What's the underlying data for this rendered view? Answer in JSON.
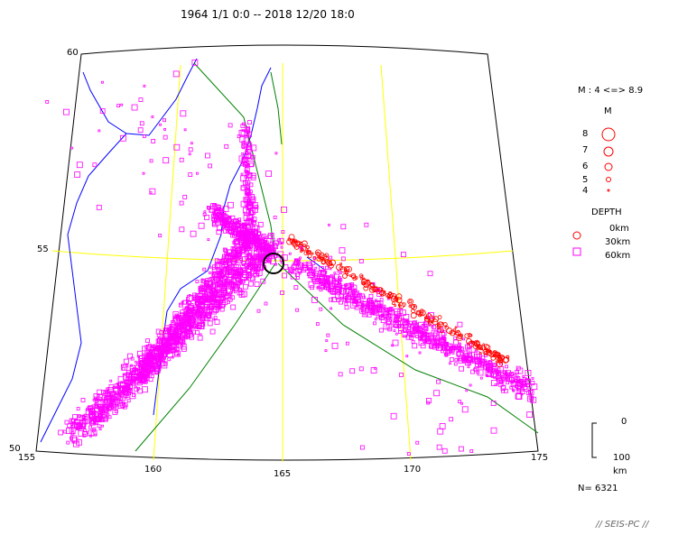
{
  "title": "1964 1/1 0:0 -- 2018 12/20 18:0",
  "map": {
    "lat_labels": [
      "60",
      "55",
      "50"
    ],
    "lon_labels": [
      "155",
      "160",
      "165",
      "170",
      "175"
    ],
    "colors": {
      "coast": "#0000ff",
      "grid": "#ffff00",
      "plate_boundary": "#008000",
      "shallow_events": "#ff0000",
      "deep_events": "#ff00ff",
      "highlight_ring": "#000000"
    }
  },
  "legend": {
    "magnitude_range": "M : 4 <=> 8.9",
    "m_title": "M",
    "m_values": [
      "8",
      "7",
      "6",
      "5",
      "4"
    ],
    "depth_title": "DEPTH",
    "depth_values": [
      "0km",
      "30km",
      "60km"
    ]
  },
  "scale": {
    "top": "0",
    "bottom": "100",
    "unit": "km"
  },
  "count": "N= 6321",
  "credit": "// SEIS-PC //"
}
